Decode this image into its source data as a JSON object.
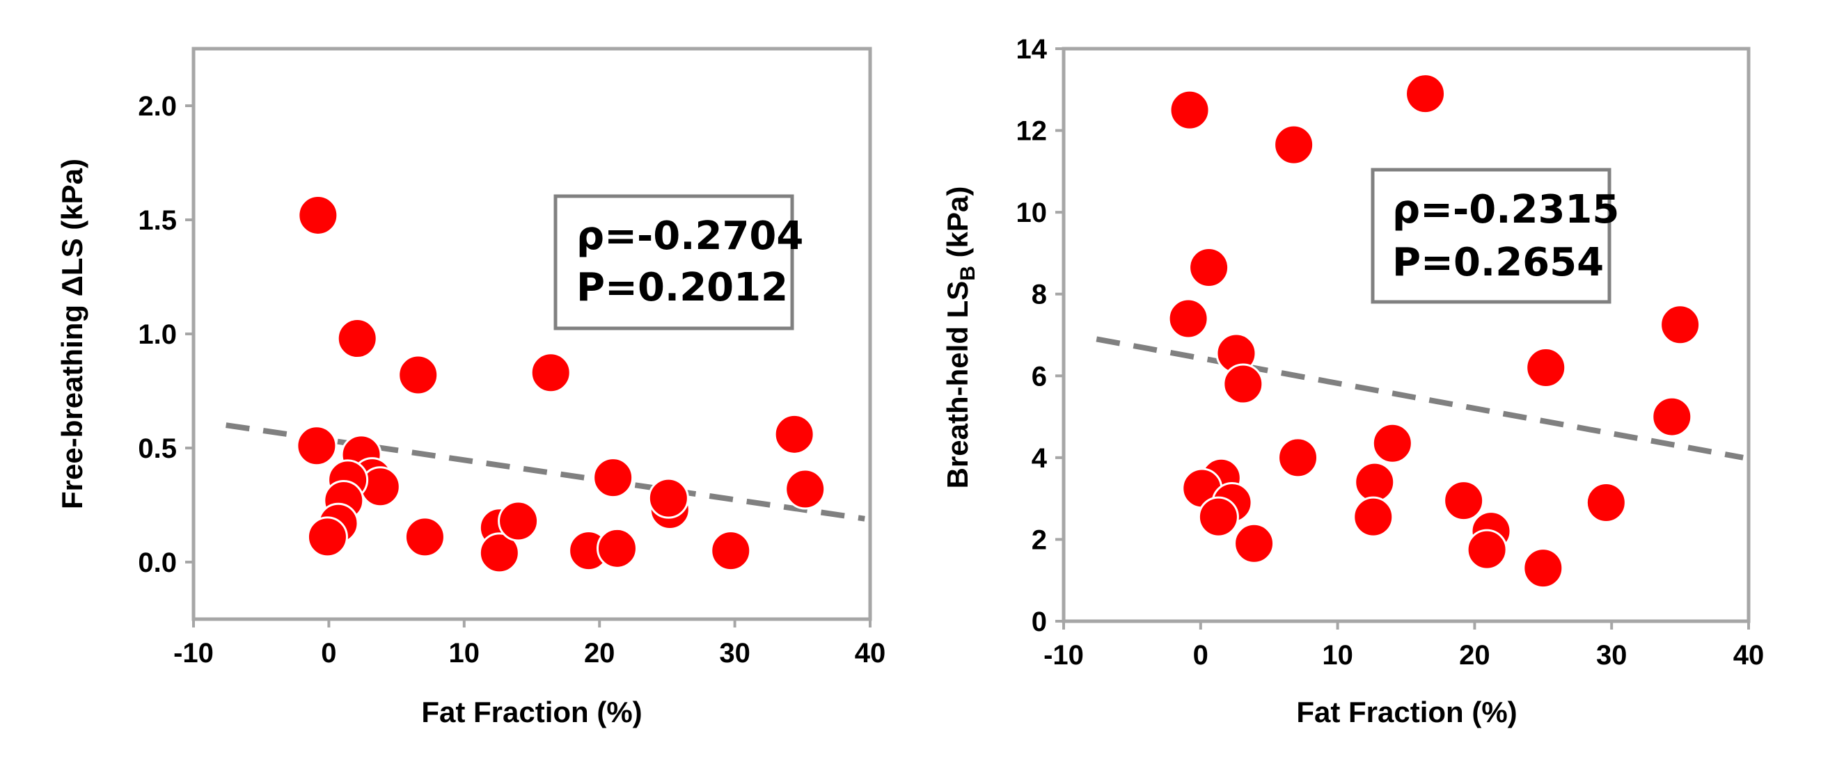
{
  "chart_data": [
    {
      "type": "scatter",
      "xlabel": "Fat Fraction (%)",
      "ylabel": "Free-breathing ΔLS (kPa)",
      "xlim": [
        -10,
        40
      ],
      "ylim": [
        -0.25,
        2.25
      ],
      "xticks": [
        "-10",
        "0",
        "10",
        "20",
        "30",
        "40"
      ],
      "yticks": [
        "0.0",
        "0.5",
        "1.0",
        "1.5",
        "2.0"
      ],
      "xtick_values": [
        -10,
        0,
        10,
        20,
        30,
        40
      ],
      "ytick_values": [
        0,
        0.5,
        1.0,
        1.5,
        2.0
      ],
      "annotation": {
        "rho": "ρ=-0.2704",
        "p": "P=0.2012"
      },
      "marker_color": "#ff0000",
      "trend_color": "#808080",
      "trendline": {
        "x": [
          -7.6,
          39.6
        ],
        "y": [
          0.6,
          0.19
        ]
      },
      "points": [
        {
          "x": -0.8,
          "y": 1.52
        },
        {
          "x": -0.9,
          "y": 0.51
        },
        {
          "x": 2.1,
          "y": 0.98
        },
        {
          "x": 2.4,
          "y": 0.47
        },
        {
          "x": 3.2,
          "y": 0.37
        },
        {
          "x": 3.8,
          "y": 0.33
        },
        {
          "x": 1.4,
          "y": 0.36
        },
        {
          "x": 1.1,
          "y": 0.27
        },
        {
          "x": 0.7,
          "y": 0.17
        },
        {
          "x": -0.1,
          "y": 0.11
        },
        {
          "x": 6.6,
          "y": 0.82
        },
        {
          "x": 7.1,
          "y": 0.11
        },
        {
          "x": 12.6,
          "y": 0.15
        },
        {
          "x": 12.6,
          "y": 0.04
        },
        {
          "x": 14.0,
          "y": 0.18
        },
        {
          "x": 16.4,
          "y": 0.83
        },
        {
          "x": 19.2,
          "y": 0.05
        },
        {
          "x": 21.0,
          "y": 0.37
        },
        {
          "x": 21.3,
          "y": 0.06
        },
        {
          "x": 25.2,
          "y": 0.23
        },
        {
          "x": 25.1,
          "y": 0.28
        },
        {
          "x": 29.7,
          "y": 0.05
        },
        {
          "x": 34.4,
          "y": 0.56
        },
        {
          "x": 35.2,
          "y": 0.32
        }
      ]
    },
    {
      "type": "scatter",
      "xlabel": "Fat Fraction (%)",
      "ylabel": "Breath-held LS",
      "ylabel_sub": "B",
      "ylabel_suffix": " (kPa)",
      "xlim": [
        -10,
        40
      ],
      "ylim": [
        0,
        14
      ],
      "xticks": [
        "-10",
        "0",
        "10",
        "20",
        "30",
        "40"
      ],
      "yticks": [
        "0",
        "2",
        "4",
        "6",
        "8",
        "10",
        "12",
        "14"
      ],
      "xtick_values": [
        -10,
        0,
        10,
        20,
        30,
        40
      ],
      "ytick_values": [
        0,
        2,
        4,
        6,
        8,
        10,
        12,
        14
      ],
      "annotation": {
        "rho": "ρ=-0.2315",
        "p": "P=0.2654"
      },
      "marker_color": "#ff0000",
      "trend_color": "#808080",
      "trendline": {
        "x": [
          -7.6,
          39.6
        ],
        "y": [
          6.9,
          4.0
        ]
      },
      "points": [
        {
          "x": -0.8,
          "y": 12.5
        },
        {
          "x": -0.9,
          "y": 7.4
        },
        {
          "x": 0.6,
          "y": 8.65
        },
        {
          "x": 2.6,
          "y": 6.55
        },
        {
          "x": 3.1,
          "y": 5.8
        },
        {
          "x": 1.5,
          "y": 3.5
        },
        {
          "x": 0.1,
          "y": 3.25
        },
        {
          "x": 2.3,
          "y": 2.9
        },
        {
          "x": 1.3,
          "y": 2.55
        },
        {
          "x": 3.9,
          "y": 1.9
        },
        {
          "x": 6.8,
          "y": 11.65
        },
        {
          "x": 7.1,
          "y": 4.0
        },
        {
          "x": 12.7,
          "y": 3.4
        },
        {
          "x": 12.6,
          "y": 2.55
        },
        {
          "x": 14.0,
          "y": 4.35
        },
        {
          "x": 16.4,
          "y": 12.9
        },
        {
          "x": 19.2,
          "y": 2.95
        },
        {
          "x": 21.2,
          "y": 2.2
        },
        {
          "x": 20.9,
          "y": 1.75
        },
        {
          "x": 25.2,
          "y": 6.2
        },
        {
          "x": 25.0,
          "y": 1.3
        },
        {
          "x": 29.6,
          "y": 2.9
        },
        {
          "x": 34.4,
          "y": 5.0
        },
        {
          "x": 35.0,
          "y": 7.25
        }
      ]
    }
  ]
}
